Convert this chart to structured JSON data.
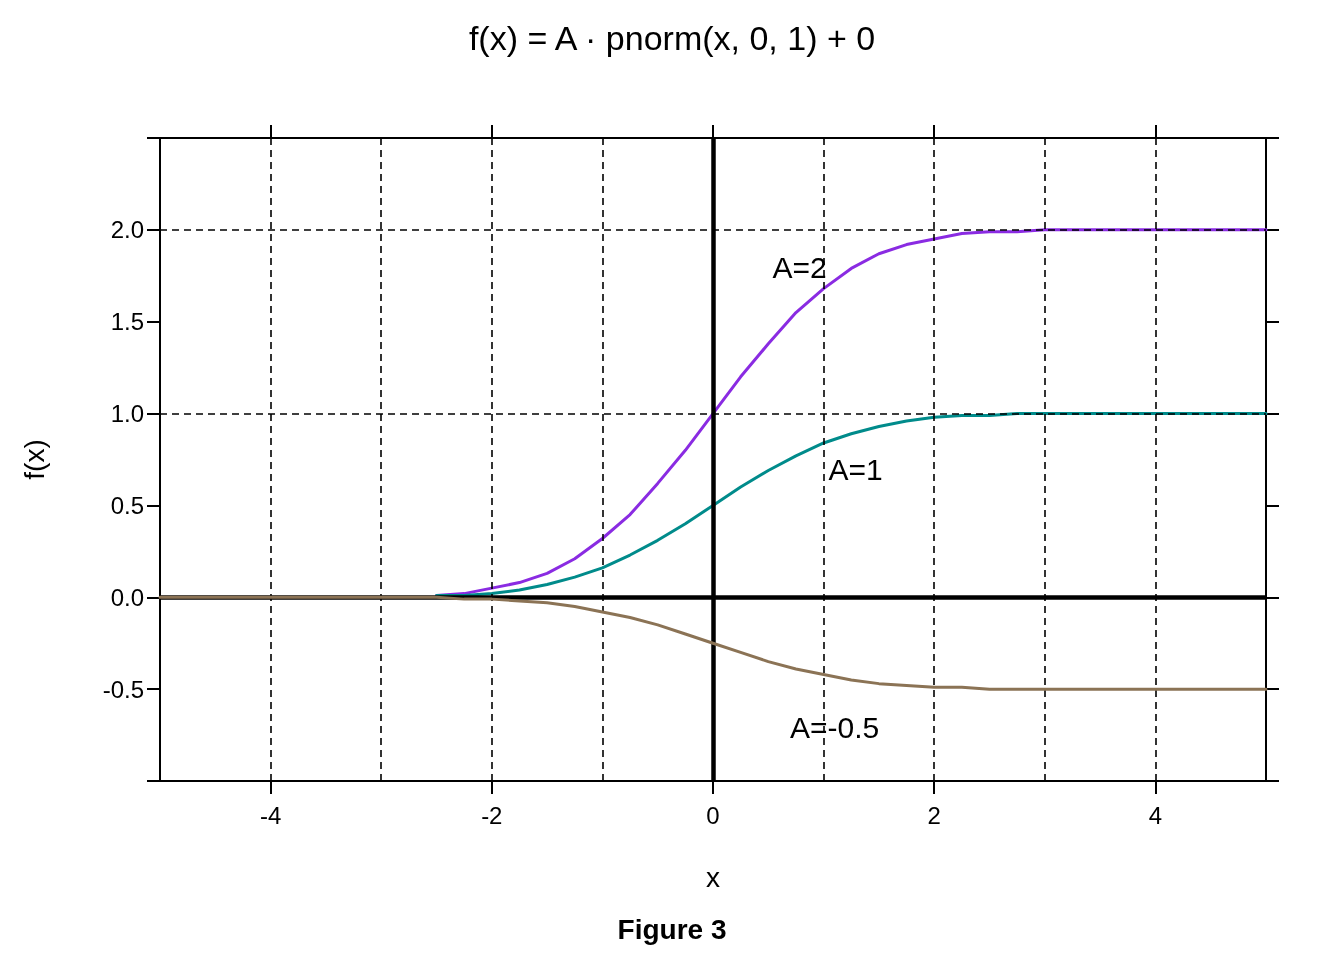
{
  "chart_data": {
    "type": "line",
    "title": "f(x) = A · pnorm(x, 0, 1) + 0",
    "xlabel": "x",
    "ylabel": "f(x)",
    "annotations": [
      "Figure 3"
    ],
    "x": [
      -5,
      -4.75,
      -4.5,
      -4.25,
      -4,
      -3.75,
      -3.5,
      -3.25,
      -3,
      -2.75,
      -2.5,
      -2.25,
      -2,
      -1.75,
      -1.5,
      -1.25,
      -1,
      -0.75,
      -0.5,
      -0.25,
      0,
      0.25,
      0.5,
      0.75,
      1,
      1.25,
      1.5,
      1.75,
      2,
      2.25,
      2.5,
      2.75,
      3,
      3.25,
      3.5,
      3.75,
      4,
      4.25,
      4.5,
      4.75,
      5
    ],
    "series": [
      {
        "name": "A=2",
        "color": "#8a2be2",
        "values": [
          null,
          null,
          null,
          null,
          null,
          null,
          null,
          null,
          null,
          null,
          0.01,
          0.02,
          0.05,
          0.08,
          0.13,
          0.21,
          0.32,
          0.45,
          0.62,
          0.8,
          1.0,
          1.2,
          1.38,
          1.55,
          1.68,
          1.79,
          1.87,
          1.92,
          1.95,
          1.98,
          1.99,
          1.99,
          2.0,
          2.0,
          2.0,
          2.0,
          2.0,
          2.0,
          2.0,
          2.0,
          2.0
        ]
      },
      {
        "name": "A=1",
        "color": "#008b8b",
        "values": [
          null,
          null,
          null,
          null,
          null,
          null,
          null,
          null,
          null,
          null,
          0.01,
          0.01,
          0.02,
          0.04,
          0.07,
          0.11,
          0.16,
          0.23,
          0.31,
          0.4,
          0.5,
          0.6,
          0.69,
          0.77,
          0.84,
          0.89,
          0.93,
          0.96,
          0.98,
          0.99,
          0.99,
          1.0,
          1.0,
          1.0,
          1.0,
          1.0,
          1.0,
          1.0,
          1.0,
          1.0,
          1.0
        ]
      },
      {
        "name": "A=-0.5",
        "color": "#8b7355",
        "values": [
          0,
          0,
          0,
          0,
          0,
          0,
          0,
          0,
          0,
          0,
          0,
          -0.01,
          -0.01,
          -0.02,
          -0.03,
          -0.05,
          -0.08,
          -0.11,
          -0.15,
          -0.2,
          -0.25,
          -0.3,
          -0.35,
          -0.39,
          -0.42,
          -0.45,
          -0.47,
          -0.48,
          -0.49,
          -0.49,
          -0.5,
          -0.5,
          -0.5,
          -0.5,
          -0.5,
          -0.5,
          -0.5,
          -0.5,
          -0.5,
          -0.5,
          -0.5
        ]
      }
    ],
    "xlim": [
      -5,
      5
    ],
    "xticks": [
      -4,
      -2,
      0,
      2,
      4
    ],
    "ylim": [
      -1,
      2.5
    ],
    "yticks": [
      {
        "value": -1,
        "label": null
      },
      {
        "value": -0.5,
        "label": "-0.5"
      },
      {
        "value": 0,
        "label": "0.0"
      },
      {
        "value": 0.5,
        "label": "0.5"
      },
      {
        "value": 1,
        "label": "1.0"
      },
      {
        "value": 1.5,
        "label": "1.5"
      },
      {
        "value": 2,
        "label": "2.0"
      },
      {
        "value": 2.5,
        "label": null
      }
    ],
    "ref_lines": [
      {
        "axis": "x",
        "value": -4,
        "color": "#000000",
        "line_style": "dashed"
      },
      {
        "axis": "x",
        "value": -3,
        "color": "#000000",
        "line_style": "dashed"
      },
      {
        "axis": "x",
        "value": -2,
        "color": "#000000",
        "line_style": "dashed"
      },
      {
        "axis": "x",
        "value": -1,
        "color": "#000000",
        "line_style": "dashed"
      },
      {
        "axis": "x",
        "value": 1,
        "color": "#000000",
        "line_style": "dashed"
      },
      {
        "axis": "x",
        "value": 2,
        "color": "#000000",
        "line_style": "dashed"
      },
      {
        "axis": "x",
        "value": 3,
        "color": "#000000",
        "line_style": "dashed"
      },
      {
        "axis": "x",
        "value": 4,
        "color": "#000000",
        "line_style": "dashed"
      },
      {
        "axis": "y",
        "value": 1,
        "color": "#000000",
        "line_style": "dashed"
      },
      {
        "axis": "y",
        "value": 2,
        "color": "#000000",
        "line_style": "dashed"
      },
      {
        "axis": "x",
        "value": 0,
        "color": "#000000",
        "line_style": "solid"
      },
      {
        "axis": "y",
        "value": 0,
        "color": "#000000",
        "line_style": "solid"
      }
    ]
  }
}
